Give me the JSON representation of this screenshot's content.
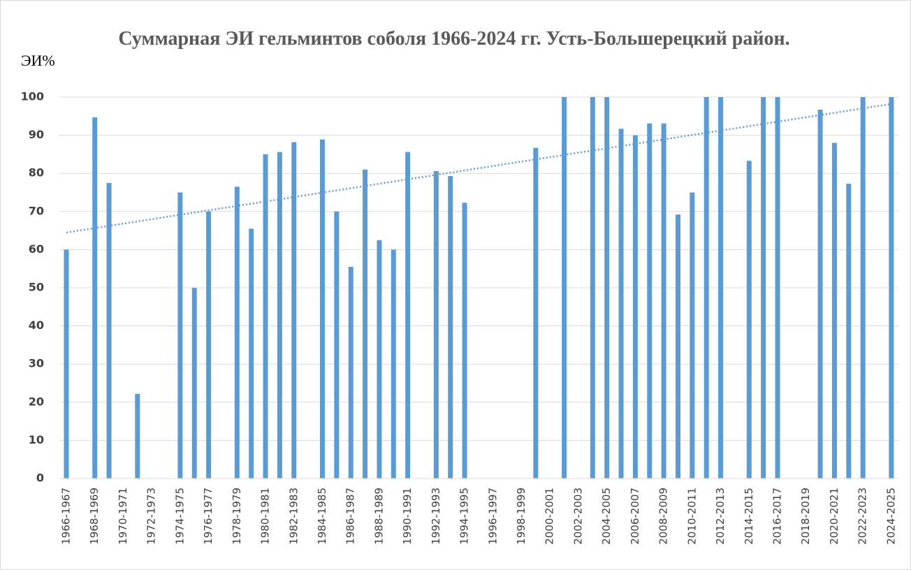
{
  "chart_data": {
    "type": "bar",
    "title": "Суммарная ЭИ гельминтов соболя 1966-2024 гг. Усть-Большерецкий район.",
    "y_label": "ЭИ%",
    "categories": [
      "1966-1967",
      null,
      "1968-1969",
      null,
      "1970-1971",
      null,
      "1972-1973",
      null,
      "1974-1975",
      null,
      "1976-1977",
      null,
      "1978-1979",
      null,
      "1980-1981",
      null,
      "1982-1983",
      null,
      "1984-1985",
      null,
      "1986-1987",
      null,
      "1988-1989",
      null,
      "1990-1991",
      null,
      "1992-1993",
      null,
      "1994-1995",
      null,
      "1996-1997",
      null,
      "1998-1999",
      null,
      "2000-2001",
      null,
      "2002-2003",
      null,
      "2004-2005",
      null,
      "2006-2007",
      null,
      "2008-2009",
      null,
      "2010-2011",
      null,
      "2012-2013",
      null,
      "2014-2015",
      null,
      "2016-2017",
      null,
      "2018-2019",
      null,
      "2020-2021",
      null,
      "2022-2023",
      null,
      "2024-2025"
    ],
    "values": [
      60,
      null,
      94.7,
      77.5,
      null,
      22.2,
      null,
      null,
      75,
      50,
      70,
      null,
      76.5,
      65.5,
      85,
      85.6,
      88.2,
      null,
      88.9,
      70,
      55.5,
      81,
      62.5,
      60,
      85.6,
      null,
      80.6,
      79.3,
      72.3,
      null,
      null,
      null,
      null,
      86.7,
      null,
      100,
      null,
      100,
      100,
      91.7,
      90,
      93.1,
      93.1,
      69.2,
      75,
      100,
      100,
      null,
      83.3,
      100,
      100,
      null,
      null,
      96.7,
      88,
      77.3,
      100,
      null,
      100
    ],
    "color": "#5b9bd5",
    "trendline": {
      "values": [
        64.5,
        98.2
      ],
      "color": "#5b9bd5"
    },
    "ylim": [
      0,
      100
    ],
    "yticks": [
      0,
      10,
      20,
      30,
      40,
      50,
      60,
      70,
      80,
      90,
      100
    ],
    "grid": true
  }
}
